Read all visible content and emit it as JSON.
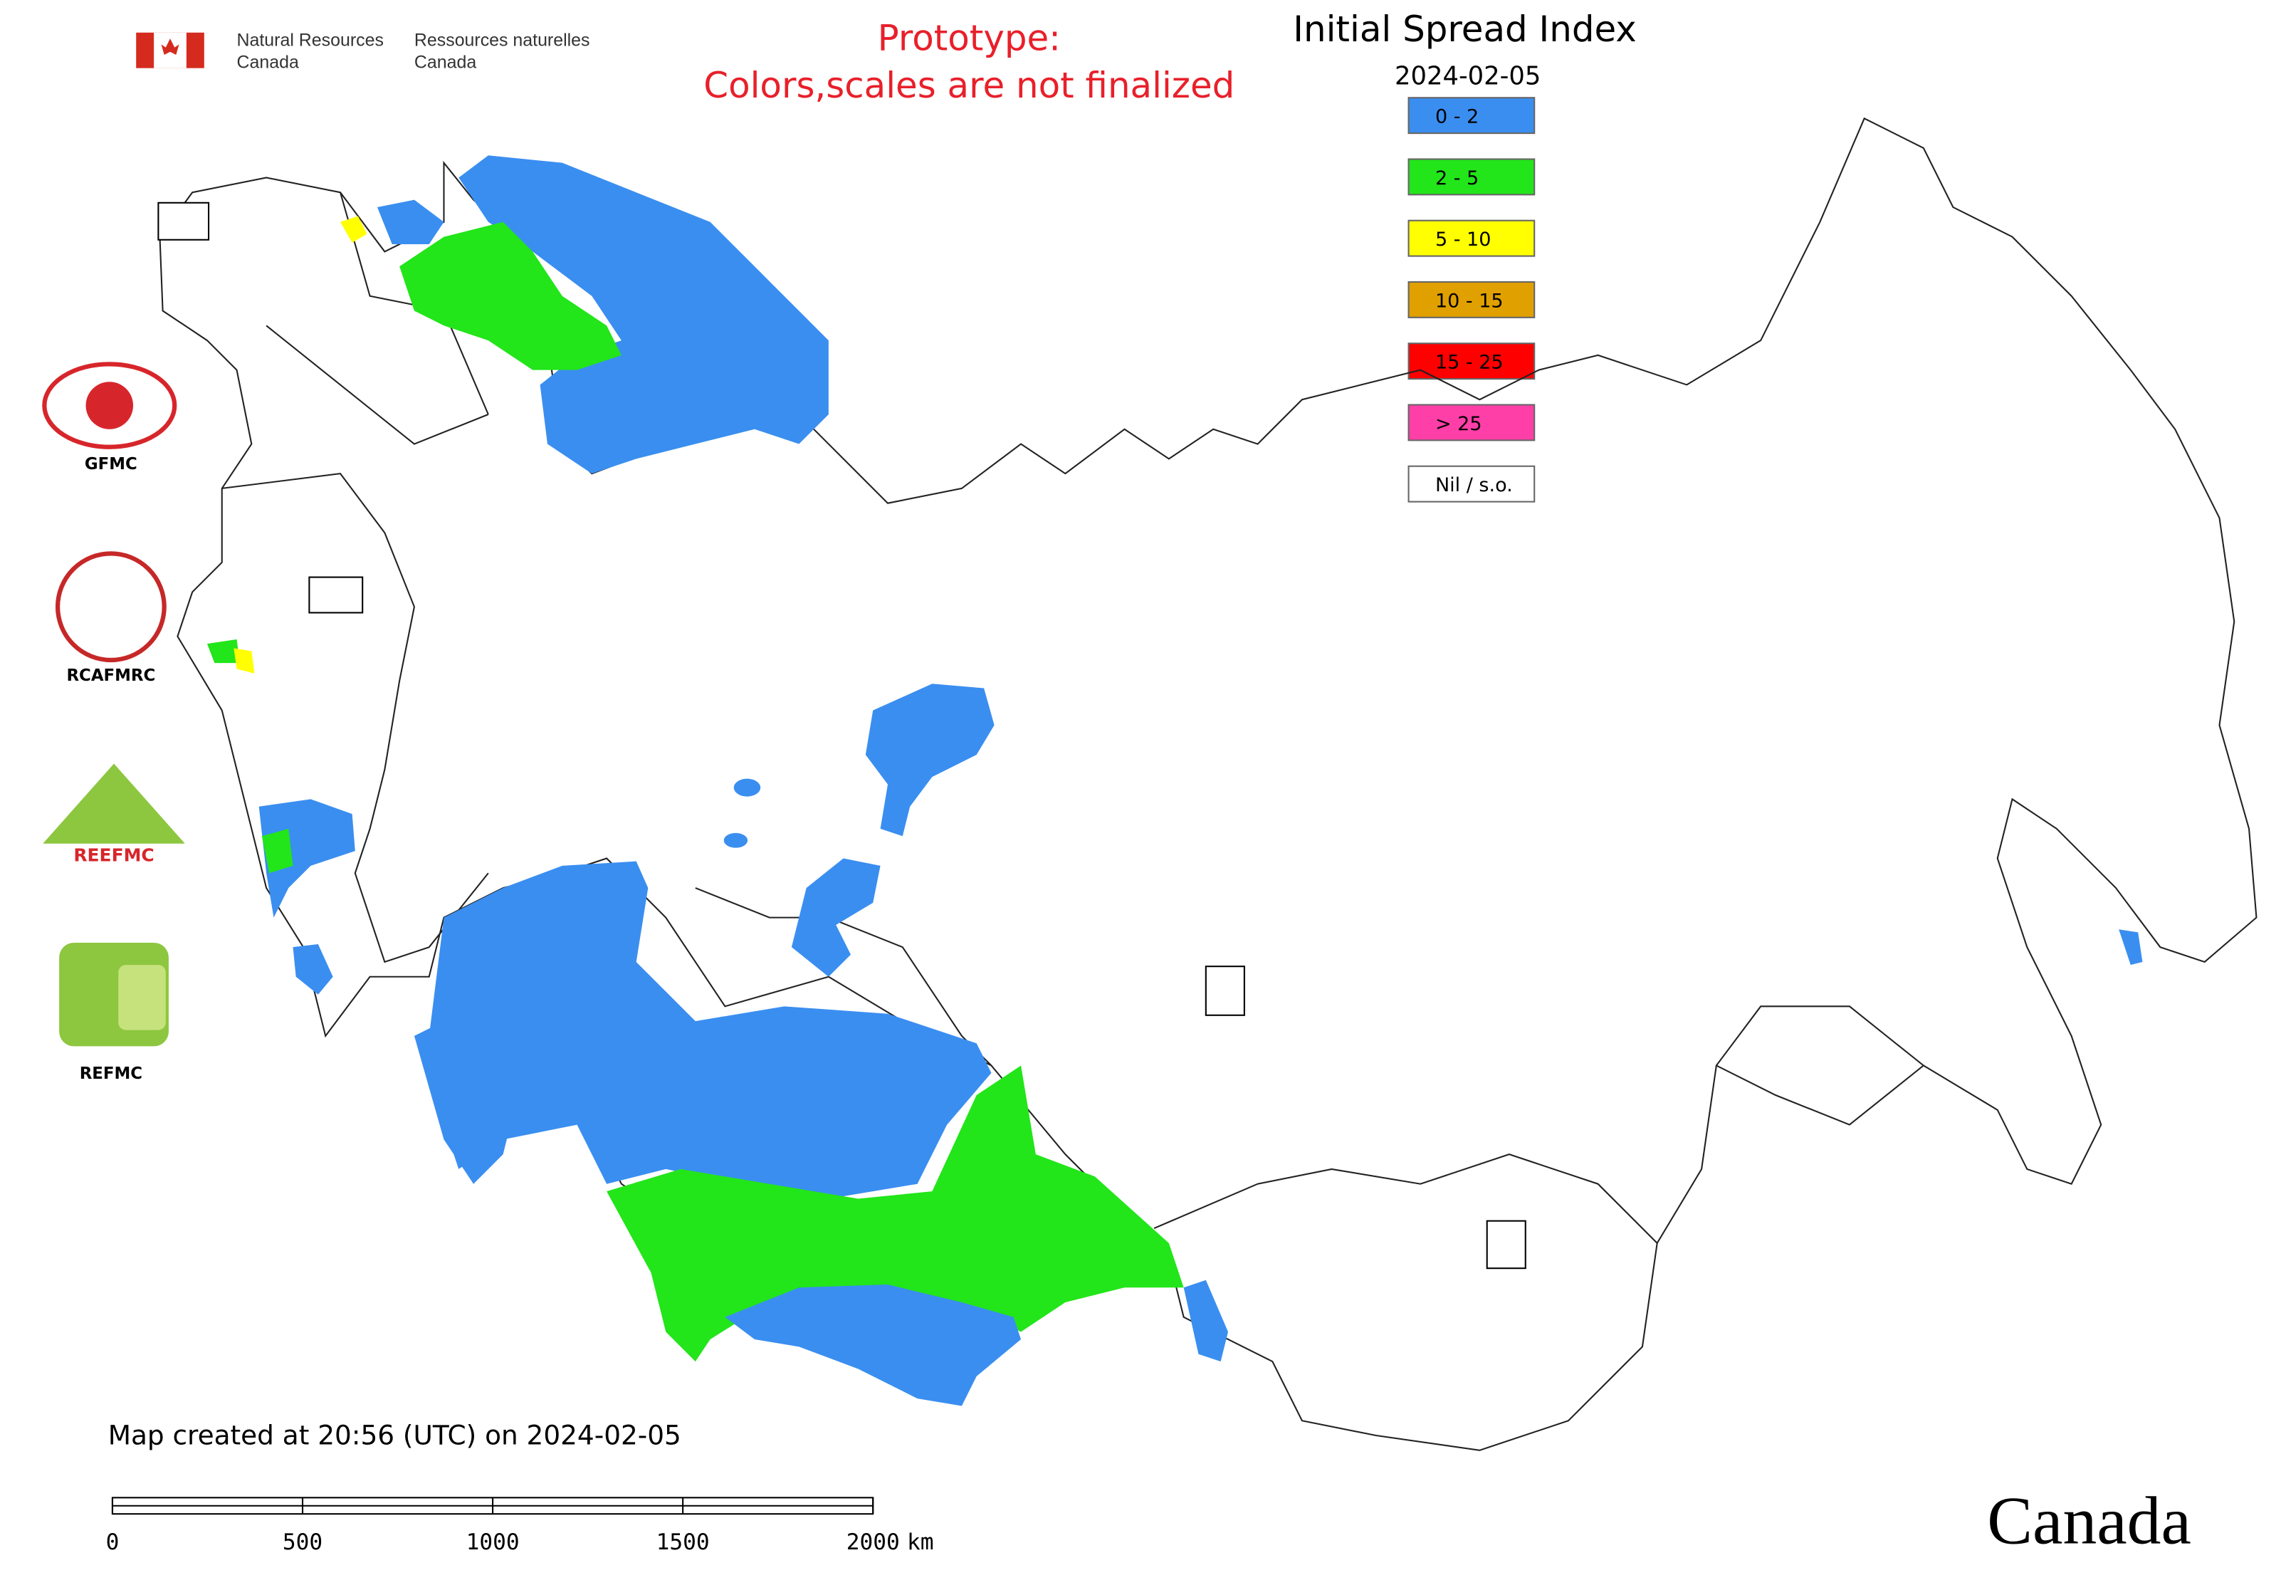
{
  "agency": {
    "english": [
      "Natural Resources",
      "Canada"
    ],
    "french": [
      "Ressources naturelles",
      "Canada"
    ]
  },
  "notice": [
    "Prototype:",
    "Colors,scales are not finalized"
  ],
  "title": "Initial Spread Index",
  "date": "2024-02-05",
  "legend": [
    {
      "label": "0 - 2",
      "color": "#3a8ef0"
    },
    {
      "label": "2 - 5",
      "color": "#22e51a"
    },
    {
      "label": "5 - 10",
      "color": "#ffff00"
    },
    {
      "label": "10 - 15",
      "color": "#e0a000"
    },
    {
      "label": "15 - 25",
      "color": "#ff0000"
    },
    {
      "label": "> 25",
      "color": "#ff3fa8"
    },
    {
      "label": "Nil / s.o.",
      "color": "#ffffff"
    }
  ],
  "logos": [
    "GFMC",
    "RCAFMRC",
    "REEFMC",
    "REFMC"
  ],
  "footer": "Map created at 20:56 (UTC) on 2024-02-05",
  "scale_bar": {
    "ticks": [
      0,
      500,
      1000,
      1500,
      2000
    ],
    "unit": "km"
  },
  "wordmark": "Canada"
}
